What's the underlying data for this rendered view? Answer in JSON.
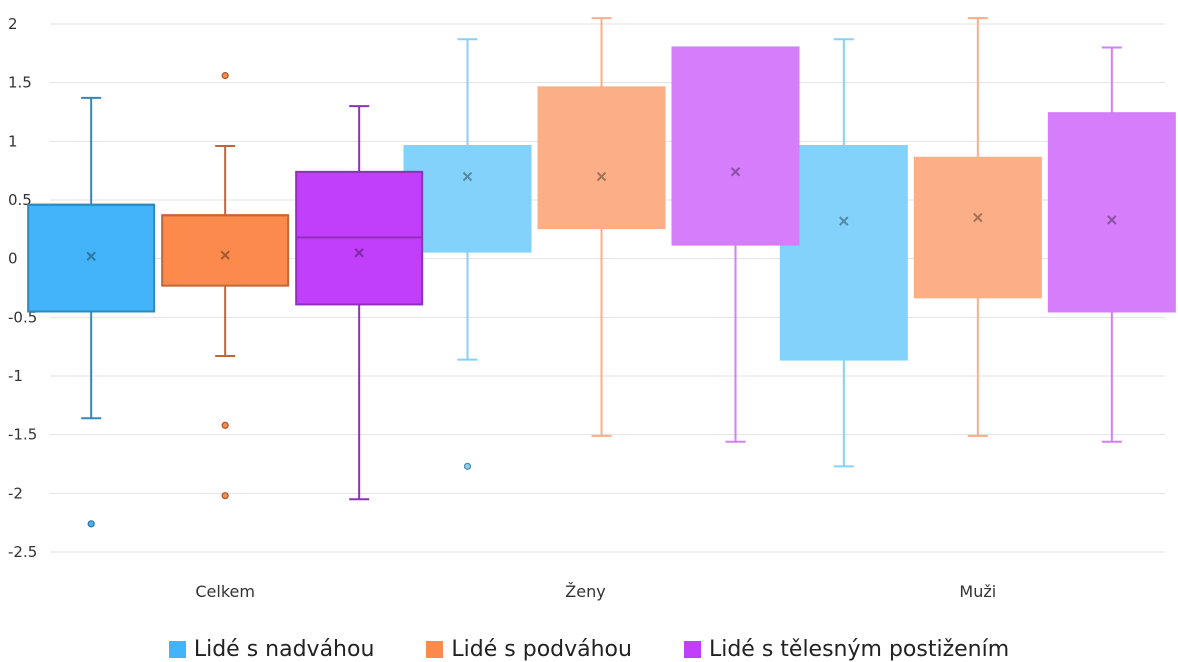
{
  "chart_data": {
    "type": "boxplot",
    "title": "",
    "xlabel": "",
    "ylabel": "",
    "ylim": [
      -2.5,
      2
    ],
    "y_ticks": [
      "2",
      "1.5",
      "1",
      "0.5",
      "0",
      "-0.5",
      "-1",
      "-1.5",
      "-2",
      "-2.5"
    ],
    "grid": true,
    "legend_position": "bottom",
    "categories": [
      "Celkem",
      "Ženy",
      "Muži"
    ],
    "series": [
      {
        "name": "Lidé s nadváhou",
        "colors": {
          "swatch": "#43b4f9",
          "Celkem": "#43b4f9",
          "Ženy": "#83d2fb",
          "Muži": "#83d2fb"
        },
        "boxes": [
          {
            "category": "Celkem",
            "min": -1.36,
            "q1": -0.45,
            "median": 0.46,
            "q3": 0.46,
            "max": 1.37,
            "mean": 0.02,
            "outliers": [
              -2.26
            ]
          },
          {
            "category": "Ženy",
            "min": -0.86,
            "q1": 0.06,
            "median": 0.96,
            "q3": 0.96,
            "max": 1.87,
            "mean": 0.7,
            "outliers": [
              -1.77
            ]
          },
          {
            "category": "Muži",
            "min": -1.77,
            "q1": -0.86,
            "median": 0.96,
            "q3": 0.96,
            "max": 1.87,
            "mean": 0.32,
            "outliers": []
          }
        ]
      },
      {
        "name": "Lidé s podváhou",
        "colors": {
          "swatch": "#fb8a4c",
          "Celkem": "#fb8a4c",
          "Ženy": "#fcae86",
          "Muži": "#fcae86"
        },
        "boxes": [
          {
            "category": "Celkem",
            "min": -0.83,
            "q1": -0.23,
            "median": 0.37,
            "q3": 0.37,
            "max": 0.96,
            "mean": 0.03,
            "outliers": [
              1.56,
              -1.42,
              -2.02
            ]
          },
          {
            "category": "Ženy",
            "min": -1.51,
            "q1": 0.26,
            "median": 0.86,
            "q3": 1.46,
            "max": 2.05,
            "mean": 0.7,
            "outliers": []
          },
          {
            "category": "Muži",
            "min": -1.51,
            "q1": -0.33,
            "median": 0.26,
            "q3": 0.86,
            "max": 2.05,
            "mean": 0.35,
            "outliers": []
          }
        ]
      },
      {
        "name": "Lidé s tělesným postižením",
        "colors": {
          "swatch": "#c13ffb",
          "Celkem": "#c13ffb",
          "Ženy": "#d57dfb",
          "Muži": "#d57dfb"
        },
        "boxes": [
          {
            "category": "Celkem",
            "min": -2.05,
            "q1": -0.39,
            "median": 0.18,
            "q3": 0.74,
            "max": 1.3,
            "mean": 0.05,
            "outliers": []
          },
          {
            "category": "Ženy",
            "min": -1.56,
            "q1": 0.12,
            "median": 0.68,
            "q3": 1.8,
            "max": 1.8,
            "mean": 0.74,
            "outliers": []
          },
          {
            "category": "Muži",
            "min": -1.56,
            "q1": -0.45,
            "median": 0.68,
            "q3": 1.24,
            "max": 1.8,
            "mean": 0.33,
            "outliers": []
          }
        ]
      }
    ]
  }
}
